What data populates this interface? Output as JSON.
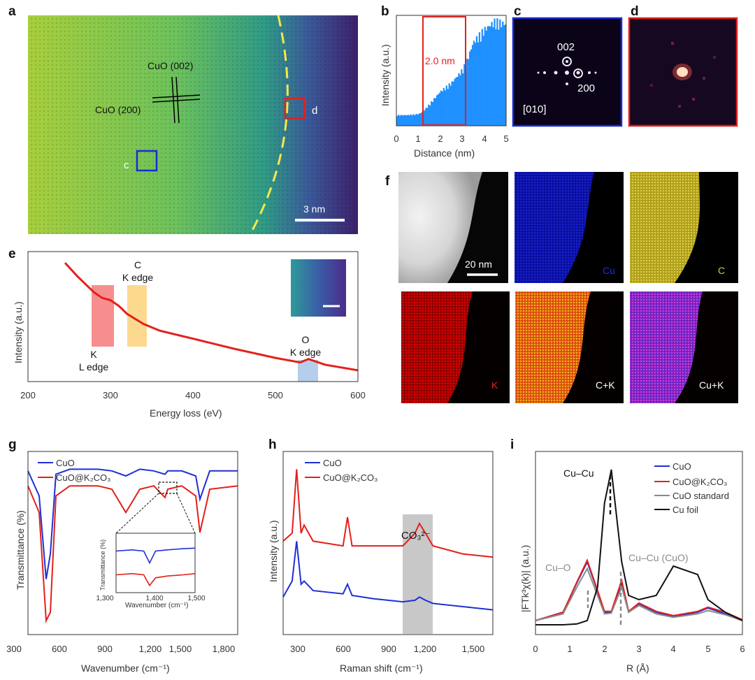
{
  "panels": {
    "a": {
      "label": "a",
      "annotations": {
        "cuo002": "CuO (002)",
        "cuo200": "CuO (200)",
        "box_c": "c",
        "box_d": "d"
      },
      "scale_bar": "3 nm"
    },
    "b": {
      "label": "b",
      "ylabel": "Intensity (a.u.)",
      "xlabel": "Distance (nm)",
      "xticks": [
        "0",
        "1",
        "2",
        "3",
        "4",
        "5"
      ],
      "annotation": "2.0 nm"
    },
    "c": {
      "label": "c",
      "spots": [
        "002",
        "200"
      ],
      "zone_axis": "[010]"
    },
    "d": {
      "label": "d"
    },
    "e": {
      "label": "e",
      "ylabel": "Intensity (a.u.)",
      "xlabel": "Energy loss (eV)",
      "xticks": [
        "200",
        "300",
        "400",
        "500",
        "600"
      ],
      "edges": {
        "c_line1": "C",
        "c_line2": "K edge",
        "k_line1": "K",
        "k_line2": "L edge",
        "o_line1": "O",
        "o_line2": "K edge"
      }
    },
    "f": {
      "label": "f",
      "scale_bar": "20 nm",
      "maps": [
        "Cu",
        "C",
        "K",
        "C+K",
        "Cu+K"
      ]
    },
    "g": {
      "label": "g",
      "ylabel": "Transmittance (%)",
      "xlabel": "Wavenumber (cm⁻¹)",
      "xticks": [
        "300",
        "600",
        "900",
        "1,200",
        "1,500",
        "1,800"
      ],
      "legend": [
        "CuO",
        "CuO@K₂CO₃"
      ],
      "inset": {
        "ylabel": "Transmittance (%)",
        "xlabel": "Wavenumber (cm⁻¹)",
        "xticks": [
          "1,300",
          "1,400",
          "1,500"
        ]
      }
    },
    "h": {
      "label": "h",
      "ylabel": "Intensity (a.u.)",
      "xlabel": "Raman shift (cm⁻¹)",
      "xticks": [
        "300",
        "600",
        "900",
        "1,200",
        "1,500"
      ],
      "legend": [
        "CuO",
        "CuO@K₂CO₃"
      ],
      "annotation": "CO₃²⁻"
    },
    "i": {
      "label": "i",
      "ylabel": "|FTk³χ(k)| (a.u.)",
      "xlabel": "R (Å)",
      "xticks": [
        "0",
        "1",
        "2",
        "3",
        "4",
        "5",
        "6"
      ],
      "legend": [
        "CuO",
        "CuO@K₂CO₃",
        "CuO standard",
        "Cu foil"
      ],
      "annotations": {
        "cucu": "Cu–Cu",
        "cuo": "Cu–O",
        "cucu_cuo": "Cu–Cu (CuO)"
      }
    }
  },
  "colors": {
    "blue": "#1f2fd6",
    "red": "#e3201b",
    "grey": "#8a8a8a",
    "black": "#111111",
    "raman_band": "#c8c8c8",
    "eels_k": "#f47a7a",
    "eels_c": "#fbd27a",
    "eels_o": "#a9c6e8"
  },
  "chart_data": [
    {
      "type": "bar",
      "panel": "b",
      "x": [
        0,
        0.5,
        1.0,
        1.2,
        1.5,
        2.0,
        2.5,
        3.0,
        3.2,
        3.5,
        4.0,
        4.5,
        5.0
      ],
      "values": [
        0.1,
        0.1,
        0.11,
        0.13,
        0.2,
        0.32,
        0.4,
        0.52,
        0.6,
        0.78,
        0.9,
        0.98,
        0.95
      ],
      "xlabel": "Distance (nm)",
      "ylabel": "Intensity (a.u.)",
      "xlim": [
        0,
        5
      ],
      "highlight": [
        1.2,
        3.2
      ]
    },
    {
      "type": "line",
      "panel": "e",
      "x": [
        245,
        260,
        280,
        290,
        300,
        310,
        320,
        340,
        360,
        400,
        450,
        500,
        530,
        540,
        560,
        600
      ],
      "values": [
        1.0,
        0.88,
        0.74,
        0.69,
        0.67,
        0.62,
        0.55,
        0.46,
        0.4,
        0.33,
        0.24,
        0.16,
        0.12,
        0.15,
        0.1,
        0.05
      ],
      "xlabel": "Energy loss (eV)",
      "ylabel": "Intensity (a.u.)",
      "xlim": [
        200,
        600
      ]
    },
    {
      "type": "line",
      "panel": "g",
      "x": [
        400,
        480,
        530,
        560,
        600,
        700,
        800,
        900,
        1000,
        1100,
        1200,
        1300,
        1380,
        1400,
        1500,
        1600,
        1630,
        1700,
        1900
      ],
      "series": [
        {
          "name": "CuO",
          "values": [
            0.95,
            0.8,
            0.3,
            0.45,
            0.93,
            0.96,
            0.96,
            0.96,
            0.95,
            0.92,
            0.96,
            0.95,
            0.93,
            0.95,
            0.95,
            0.92,
            0.78,
            0.95,
            0.95
          ]
        },
        {
          "name": "CuO@K₂CO₃",
          "values": [
            0.86,
            0.7,
            0.05,
            0.1,
            0.8,
            0.86,
            0.86,
            0.86,
            0.84,
            0.7,
            0.84,
            0.86,
            0.79,
            0.84,
            0.86,
            0.8,
            0.58,
            0.84,
            0.86
          ]
        }
      ],
      "xlabel": "Wavenumber (cm⁻¹)",
      "ylabel": "Transmittance (%)",
      "xlim": [
        400,
        1900
      ]
    },
    {
      "type": "line",
      "panel": "h",
      "x": [
        200,
        260,
        290,
        320,
        340,
        400,
        600,
        630,
        660,
        800,
        1000,
        1080,
        1110,
        1150,
        1200,
        1400,
        1600
      ],
      "series": [
        {
          "name": "CuO",
          "values": [
            0.2,
            0.3,
            0.55,
            0.28,
            0.3,
            0.24,
            0.22,
            0.28,
            0.21,
            0.19,
            0.17,
            0.18,
            0.2,
            0.18,
            0.16,
            0.14,
            0.12
          ]
        },
        {
          "name": "CuO@K₂CO₃",
          "values": [
            0.55,
            0.6,
            1.0,
            0.6,
            0.65,
            0.55,
            0.52,
            0.7,
            0.52,
            0.52,
            0.52,
            0.6,
            0.66,
            0.6,
            0.52,
            0.47,
            0.45
          ]
        }
      ],
      "xlabel": "Raman shift (cm⁻¹)",
      "ylabel": "Intensity (a.u.)",
      "xlim": [
        200,
        1600
      ]
    },
    {
      "type": "line",
      "panel": "i",
      "x": [
        0,
        0.8,
        1.2,
        1.5,
        1.8,
        2.0,
        2.2,
        2.5,
        2.7,
        3.0,
        3.5,
        4.0,
        4.7,
        5.0,
        5.5,
        6.0
      ],
      "series": [
        {
          "name": "CuO",
          "values": [
            0.1,
            0.2,
            0.55,
            0.8,
            0.45,
            0.2,
            0.2,
            0.55,
            0.2,
            0.3,
            0.2,
            0.15,
            0.2,
            0.25,
            0.18,
            0.1
          ]
        },
        {
          "name": "CuO@K₂CO₃",
          "values": [
            0.1,
            0.2,
            0.56,
            0.82,
            0.46,
            0.21,
            0.21,
            0.58,
            0.21,
            0.31,
            0.21,
            0.16,
            0.21,
            0.26,
            0.2,
            0.11
          ]
        },
        {
          "name": "CuO standard",
          "values": [
            0.1,
            0.18,
            0.5,
            0.72,
            0.4,
            0.18,
            0.19,
            0.5,
            0.2,
            0.28,
            0.18,
            0.14,
            0.18,
            0.22,
            0.17,
            0.1
          ]
        },
        {
          "name": "Cu foil",
          "values": [
            0.05,
            0.05,
            0.06,
            0.1,
            0.5,
            1.5,
            1.9,
            0.8,
            0.4,
            0.35,
            0.4,
            0.75,
            0.65,
            0.35,
            0.2,
            0.1
          ]
        }
      ],
      "xlabel": "R (Å)",
      "ylabel": "|FTk³χ(k)| (a.u.)",
      "xlim": [
        0,
        6
      ]
    }
  ]
}
